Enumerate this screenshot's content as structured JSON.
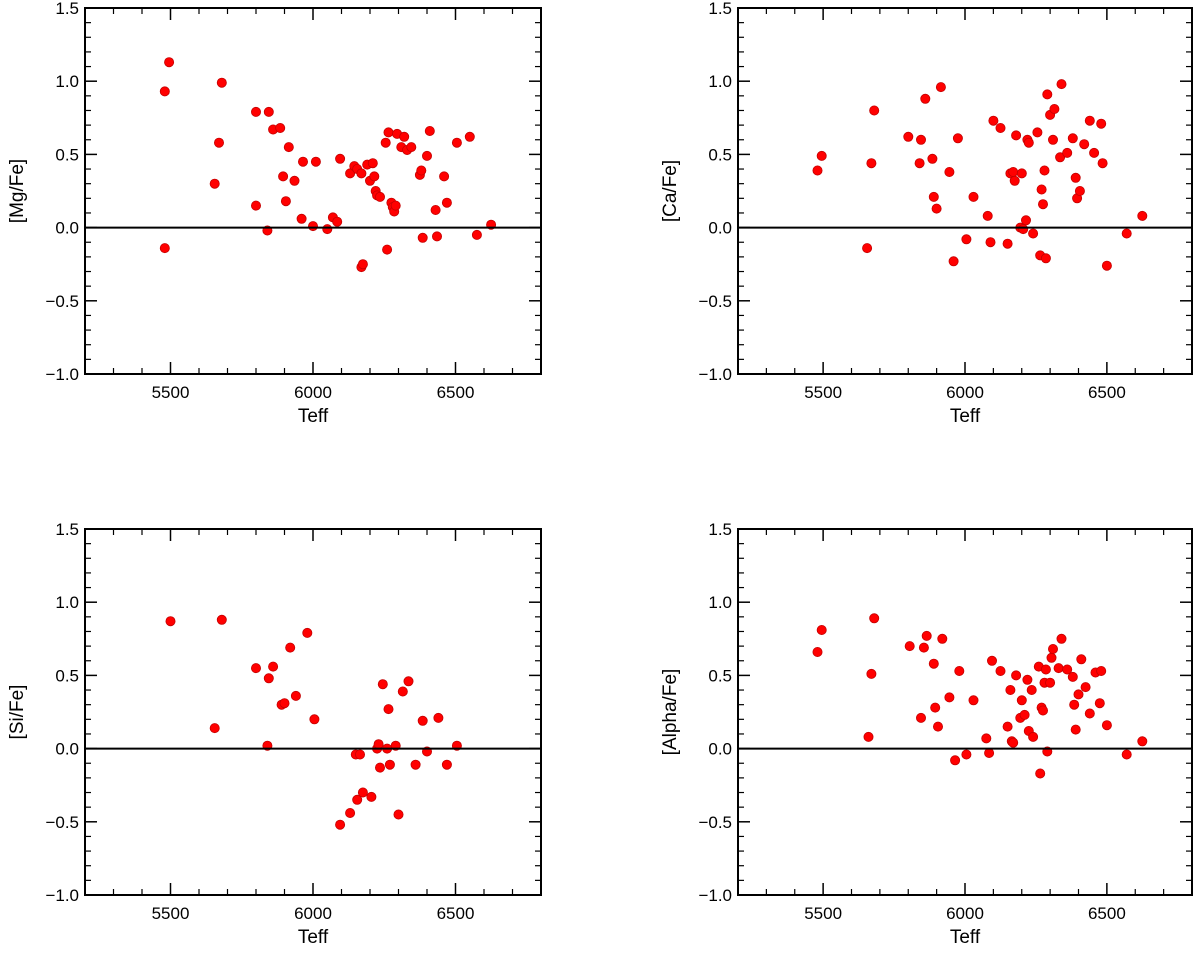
{
  "chart_data": [
    {
      "type": "scatter",
      "xlabel": "Teff",
      "ylabel": "[Mg/Fe]",
      "xlim": [
        5200,
        6800
      ],
      "ylim": [
        -1.0,
        1.5
      ],
      "xticks": [
        5500,
        6000,
        6500
      ],
      "xtick_labels": [
        "5500",
        "6000",
        "6500"
      ],
      "yticks": [
        -1.0,
        -0.5,
        0.0,
        0.5,
        1.0,
        1.5
      ],
      "ytick_labels": [
        "−1.0",
        "−0.5",
        "0.0",
        "0.5",
        "1.0",
        "1.5"
      ],
      "reference_line_y": 0.0,
      "marker_color": "#ff0000",
      "points": [
        [
          5480,
          0.93
        ],
        [
          5495,
          1.13
        ],
        [
          5480,
          -0.14
        ],
        [
          5655,
          0.3
        ],
        [
          5670,
          0.58
        ],
        [
          5680,
          0.99
        ],
        [
          5800,
          0.79
        ],
        [
          5800,
          0.15
        ],
        [
          5845,
          0.79
        ],
        [
          5860,
          0.67
        ],
        [
          5885,
          0.68
        ],
        [
          5840,
          -0.02
        ],
        [
          5895,
          0.35
        ],
        [
          5905,
          0.18
        ],
        [
          5915,
          0.55
        ],
        [
          5935,
          0.32
        ],
        [
          5960,
          0.06
        ],
        [
          5965,
          0.45
        ],
        [
          6000,
          0.01
        ],
        [
          6010,
          0.45
        ],
        [
          6050,
          -0.01
        ],
        [
          6070,
          0.07
        ],
        [
          6085,
          0.04
        ],
        [
          6095,
          0.47
        ],
        [
          6130,
          0.37
        ],
        [
          6145,
          0.42
        ],
        [
          6155,
          0.4
        ],
        [
          6170,
          0.37
        ],
        [
          6170,
          -0.27
        ],
        [
          6175,
          -0.25
        ],
        [
          6190,
          0.43
        ],
        [
          6200,
          0.32
        ],
        [
          6210,
          0.44
        ],
        [
          6215,
          0.35
        ],
        [
          6220,
          0.25
        ],
        [
          6225,
          0.22
        ],
        [
          6235,
          0.21
        ],
        [
          6255,
          0.58
        ],
        [
          6260,
          -0.15
        ],
        [
          6265,
          0.65
        ],
        [
          6275,
          0.17
        ],
        [
          6280,
          0.14
        ],
        [
          6285,
          0.11
        ],
        [
          6290,
          0.15
        ],
        [
          6295,
          0.64
        ],
        [
          6310,
          0.55
        ],
        [
          6320,
          0.62
        ],
        [
          6330,
          0.53
        ],
        [
          6345,
          0.55
        ],
        [
          6375,
          0.36
        ],
        [
          6380,
          0.39
        ],
        [
          6385,
          -0.07
        ],
        [
          6400,
          0.49
        ],
        [
          6410,
          0.66
        ],
        [
          6430,
          0.12
        ],
        [
          6435,
          -0.06
        ],
        [
          6460,
          0.35
        ],
        [
          6470,
          0.17
        ],
        [
          6505,
          0.58
        ],
        [
          6550,
          0.62
        ],
        [
          6575,
          -0.05
        ],
        [
          6625,
          0.02
        ]
      ]
    },
    {
      "type": "scatter",
      "xlabel": "Teff",
      "ylabel": "[Ca/Fe]",
      "xlim": [
        5200,
        6800
      ],
      "ylim": [
        -1.0,
        1.5
      ],
      "xticks": [
        5500,
        6000,
        6500
      ],
      "xtick_labels": [
        "5500",
        "6000",
        "6500"
      ],
      "yticks": [
        -1.0,
        -0.5,
        0.0,
        0.5,
        1.0,
        1.5
      ],
      "ytick_labels": [
        "−1.0",
        "−0.5",
        "0.0",
        "0.5",
        "1.0",
        "1.5"
      ],
      "reference_line_y": 0.0,
      "marker_color": "#ff0000",
      "points": [
        [
          5480,
          0.39
        ],
        [
          5495,
          0.49
        ],
        [
          5655,
          -0.14
        ],
        [
          5670,
          0.44
        ],
        [
          5680,
          0.8
        ],
        [
          5800,
          0.62
        ],
        [
          5840,
          0.44
        ],
        [
          5845,
          0.6
        ],
        [
          5860,
          0.88
        ],
        [
          5885,
          0.47
        ],
        [
          5890,
          0.21
        ],
        [
          5900,
          0.13
        ],
        [
          5915,
          0.96
        ],
        [
          5945,
          0.38
        ],
        [
          5960,
          -0.23
        ],
        [
          5975,
          0.61
        ],
        [
          6005,
          -0.08
        ],
        [
          6030,
          0.21
        ],
        [
          6080,
          0.08
        ],
        [
          6090,
          -0.1
        ],
        [
          6100,
          0.73
        ],
        [
          6125,
          0.68
        ],
        [
          6150,
          -0.11
        ],
        [
          6160,
          0.37
        ],
        [
          6170,
          0.38
        ],
        [
          6175,
          0.32
        ],
        [
          6180,
          0.63
        ],
        [
          6195,
          0.0
        ],
        [
          6200,
          0.37
        ],
        [
          6205,
          -0.01
        ],
        [
          6215,
          0.05
        ],
        [
          6220,
          0.6
        ],
        [
          6225,
          0.58
        ],
        [
          6240,
          -0.04
        ],
        [
          6255,
          0.65
        ],
        [
          6265,
          -0.19
        ],
        [
          6270,
          0.26
        ],
        [
          6275,
          0.16
        ],
        [
          6280,
          0.39
        ],
        [
          6285,
          -0.21
        ],
        [
          6290,
          0.91
        ],
        [
          6300,
          0.77
        ],
        [
          6310,
          0.6
        ],
        [
          6315,
          0.81
        ],
        [
          6335,
          0.48
        ],
        [
          6340,
          0.98
        ],
        [
          6360,
          0.51
        ],
        [
          6380,
          0.61
        ],
        [
          6390,
          0.34
        ],
        [
          6395,
          0.2
        ],
        [
          6405,
          0.25
        ],
        [
          6420,
          0.57
        ],
        [
          6440,
          0.73
        ],
        [
          6455,
          0.51
        ],
        [
          6480,
          0.71
        ],
        [
          6485,
          0.44
        ],
        [
          6500,
          -0.26
        ],
        [
          6570,
          -0.04
        ],
        [
          6625,
          0.08
        ]
      ]
    },
    {
      "type": "scatter",
      "xlabel": "Teff",
      "ylabel": "[Si/Fe]",
      "xlim": [
        5200,
        6800
      ],
      "ylim": [
        -1.0,
        1.5
      ],
      "xticks": [
        5500,
        6000,
        6500
      ],
      "xtick_labels": [
        "5500",
        "6000",
        "6500"
      ],
      "yticks": [
        -1.0,
        -0.5,
        0.0,
        0.5,
        1.0,
        1.5
      ],
      "ytick_labels": [
        "−1.0",
        "−0.5",
        "0.0",
        "0.5",
        "1.0",
        "1.5"
      ],
      "reference_line_y": 0.0,
      "marker_color": "#ff0000",
      "points": [
        [
          5500,
          0.87
        ],
        [
          5655,
          0.14
        ],
        [
          5680,
          0.88
        ],
        [
          5800,
          0.55
        ],
        [
          5840,
          0.02
        ],
        [
          5845,
          0.48
        ],
        [
          5860,
          0.56
        ],
        [
          5890,
          0.3
        ],
        [
          5900,
          0.31
        ],
        [
          5920,
          0.69
        ],
        [
          5940,
          0.36
        ],
        [
          5980,
          0.79
        ],
        [
          6005,
          0.2
        ],
        [
          6095,
          -0.52
        ],
        [
          6130,
          -0.44
        ],
        [
          6150,
          -0.04
        ],
        [
          6155,
          -0.35
        ],
        [
          6165,
          -0.04
        ],
        [
          6175,
          -0.3
        ],
        [
          6205,
          -0.33
        ],
        [
          6225,
          0.0
        ],
        [
          6230,
          0.03
        ],
        [
          6235,
          -0.13
        ],
        [
          6245,
          0.44
        ],
        [
          6260,
          0.0
        ],
        [
          6265,
          0.27
        ],
        [
          6270,
          -0.11
        ],
        [
          6290,
          0.02
        ],
        [
          6300,
          -0.45
        ],
        [
          6315,
          0.39
        ],
        [
          6335,
          0.46
        ],
        [
          6360,
          -0.11
        ],
        [
          6385,
          0.19
        ],
        [
          6400,
          -0.02
        ],
        [
          6440,
          0.21
        ],
        [
          6470,
          -0.11
        ],
        [
          6505,
          0.02
        ]
      ]
    },
    {
      "type": "scatter",
      "xlabel": "Teff",
      "ylabel": "[Alpha/Fe]",
      "xlim": [
        5200,
        6800
      ],
      "ylim": [
        -1.0,
        1.5
      ],
      "xticks": [
        5500,
        6000,
        6500
      ],
      "xtick_labels": [
        "5500",
        "6000",
        "6500"
      ],
      "yticks": [
        -1.0,
        -0.5,
        0.0,
        0.5,
        1.0,
        1.5
      ],
      "ytick_labels": [
        "−1.0",
        "−0.5",
        "0.0",
        "0.5",
        "1.0",
        "1.5"
      ],
      "reference_line_y": 0.0,
      "marker_color": "#ff0000",
      "points": [
        [
          5480,
          0.66
        ],
        [
          5495,
          0.81
        ],
        [
          5660,
          0.08
        ],
        [
          5670,
          0.51
        ],
        [
          5680,
          0.89
        ],
        [
          5805,
          0.7
        ],
        [
          5845,
          0.21
        ],
        [
          5855,
          0.69
        ],
        [
          5865,
          0.77
        ],
        [
          5890,
          0.58
        ],
        [
          5895,
          0.28
        ],
        [
          5905,
          0.15
        ],
        [
          5920,
          0.75
        ],
        [
          5945,
          0.35
        ],
        [
          5965,
          -0.08
        ],
        [
          5980,
          0.53
        ],
        [
          6005,
          -0.04
        ],
        [
          6030,
          0.33
        ],
        [
          6075,
          0.07
        ],
        [
          6085,
          -0.03
        ],
        [
          6095,
          0.6
        ],
        [
          6125,
          0.53
        ],
        [
          6150,
          0.15
        ],
        [
          6160,
          0.4
        ],
        [
          6165,
          0.05
        ],
        [
          6170,
          0.04
        ],
        [
          6180,
          0.5
        ],
        [
          6195,
          0.21
        ],
        [
          6200,
          0.33
        ],
        [
          6210,
          0.23
        ],
        [
          6220,
          0.47
        ],
        [
          6225,
          0.12
        ],
        [
          6235,
          0.4
        ],
        [
          6240,
          0.08
        ],
        [
          6260,
          0.56
        ],
        [
          6265,
          -0.17
        ],
        [
          6270,
          0.28
        ],
        [
          6275,
          0.26
        ],
        [
          6280,
          0.45
        ],
        [
          6285,
          0.54
        ],
        [
          6290,
          -0.02
        ],
        [
          6300,
          0.45
        ],
        [
          6305,
          0.62
        ],
        [
          6310,
          0.68
        ],
        [
          6330,
          0.55
        ],
        [
          6340,
          0.75
        ],
        [
          6360,
          0.54
        ],
        [
          6380,
          0.49
        ],
        [
          6385,
          0.3
        ],
        [
          6390,
          0.13
        ],
        [
          6400,
          0.37
        ],
        [
          6410,
          0.61
        ],
        [
          6425,
          0.42
        ],
        [
          6440,
          0.24
        ],
        [
          6460,
          0.52
        ],
        [
          6475,
          0.31
        ],
        [
          6480,
          0.53
        ],
        [
          6500,
          0.16
        ],
        [
          6570,
          -0.04
        ],
        [
          6625,
          0.05
        ]
      ]
    }
  ]
}
